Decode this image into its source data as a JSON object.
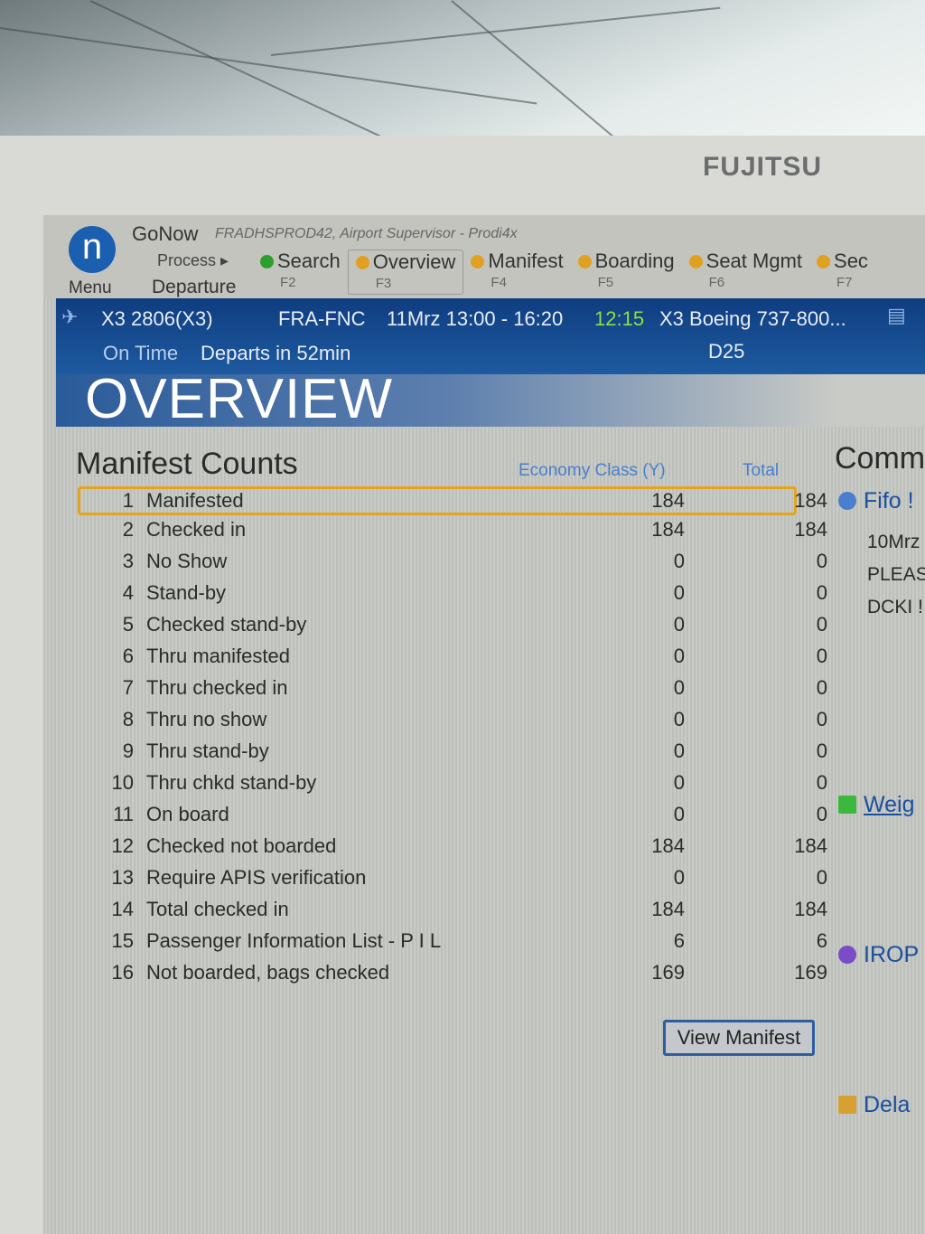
{
  "monitor": {
    "brand": "FUJITSU"
  },
  "toolbar": {
    "menu_label": "Menu",
    "app_name": "GoNow",
    "session": "FRADHSPROD42, Airport Supervisor - Prodi4x",
    "process_label": "Process ▸",
    "context": "Departure",
    "tabs": [
      {
        "label": "Search",
        "key": "F2",
        "status_color": "#2e9e2e"
      },
      {
        "label": "Overview",
        "key": "F3",
        "status_color": "#e0a020",
        "active": true
      },
      {
        "label": "Manifest",
        "key": "F4",
        "status_color": "#e0a020"
      },
      {
        "label": "Boarding",
        "key": "F5",
        "status_color": "#e0a020"
      },
      {
        "label": "Seat Mgmt",
        "key": "F6",
        "status_color": "#e0a020"
      },
      {
        "label": "Sec",
        "key": "F7",
        "status_color": "#e0a020"
      }
    ]
  },
  "flight": {
    "number": "X3 2806(X3)",
    "route": "FRA-FNC",
    "schedule": "11Mrz 13:00 - 16:20",
    "time": "12:15",
    "aircraft": "X3 Boeing 737-800...",
    "status": "On Time",
    "departs": "Departs in 52min",
    "gate": "D25"
  },
  "page": {
    "title": "OVERVIEW"
  },
  "manifest": {
    "title": "Manifest Counts",
    "col_economy": "Economy Class (Y)",
    "col_total": "Total",
    "rows": [
      {
        "n": "1",
        "label": "Manifested",
        "economy": "184",
        "total": "184"
      },
      {
        "n": "2",
        "label": "Checked in",
        "economy": "184",
        "total": "184"
      },
      {
        "n": "3",
        "label": "No Show",
        "economy": "0",
        "total": "0"
      },
      {
        "n": "4",
        "label": "Stand-by",
        "economy": "0",
        "total": "0"
      },
      {
        "n": "5",
        "label": "Checked stand-by",
        "economy": "0",
        "total": "0"
      },
      {
        "n": "6",
        "label": "Thru manifested",
        "economy": "0",
        "total": "0"
      },
      {
        "n": "7",
        "label": "Thru checked in",
        "economy": "0",
        "total": "0"
      },
      {
        "n": "8",
        "label": "Thru no show",
        "economy": "0",
        "total": "0"
      },
      {
        "n": "9",
        "label": "Thru stand-by",
        "economy": "0",
        "total": "0"
      },
      {
        "n": "10",
        "label": "Thru chkd stand-by",
        "economy": "0",
        "total": "0"
      },
      {
        "n": "11",
        "label": "On board",
        "economy": "0",
        "total": "0"
      },
      {
        "n": "12",
        "label": "Checked not boarded",
        "economy": "184",
        "total": "184"
      },
      {
        "n": "13",
        "label": "Require APIS verification",
        "economy": "0",
        "total": "0"
      },
      {
        "n": "14",
        "label": "Total checked in",
        "economy": "184",
        "total": "184"
      },
      {
        "n": "15",
        "label": "Passenger Information List - P I L",
        "economy": "6",
        "total": "6"
      },
      {
        "n": "16",
        "label": "Not boarded, bags checked",
        "economy": "169",
        "total": "169"
      }
    ],
    "view_button": "View Manifest"
  },
  "comments": {
    "title": "Comm",
    "fifo": "Fifo !",
    "lines": [
      "10Mrz",
      "PLEAS",
      "DCKI !"
    ],
    "weight": "Weig",
    "irop": "IROP",
    "delay": "Dela"
  }
}
